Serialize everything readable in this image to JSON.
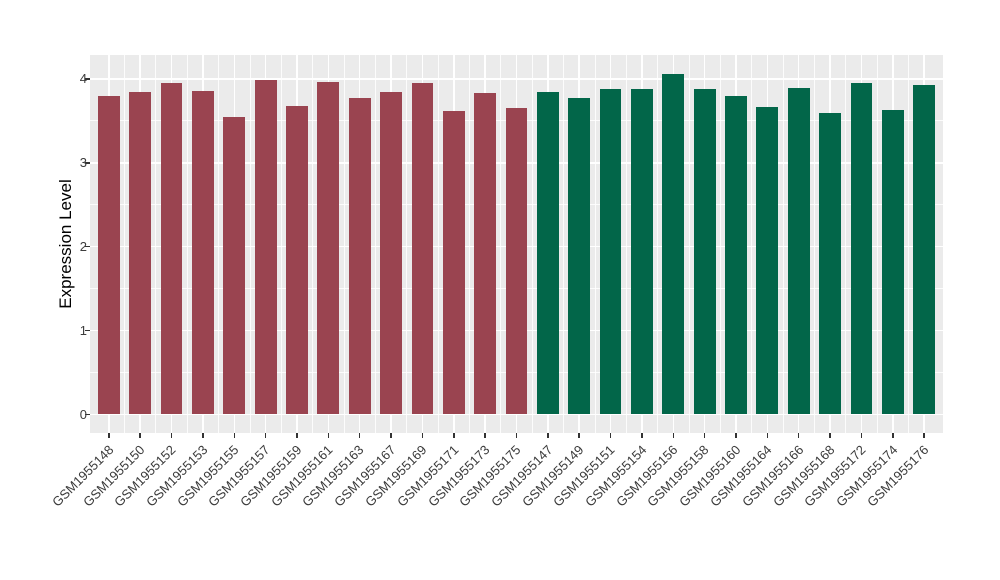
{
  "figure": {
    "background": "#FFFFFF",
    "panel_background": "#EBEBEB",
    "grid_color": "#FFFFFF",
    "tick_color": "#333333",
    "axis_text_color": "#3d3d3d",
    "axis_title_color": "#000000"
  },
  "chart_data": {
    "type": "bar",
    "title": "",
    "xlabel": "",
    "ylabel": "Expression Level",
    "legend_position": "none",
    "grid": true,
    "ylim": [
      -0.2,
      4.25
    ],
    "y_axis": {
      "ticks": [
        0,
        1,
        2,
        3,
        4
      ],
      "minor_ticks": [
        0.5,
        1.5,
        2.5,
        3.5
      ]
    },
    "categories": [
      "GSM1955148",
      "GSM1955150",
      "GSM1955152",
      "GSM1955153",
      "GSM1955155",
      "GSM1955157",
      "GSM1955159",
      "GSM1955161",
      "GSM1955163",
      "GSM1955167",
      "GSM1955169",
      "GSM1955171",
      "GSM1955173",
      "GSM1955175",
      "GSM1955147",
      "GSM1955149",
      "GSM1955151",
      "GSM1955154",
      "GSM1955156",
      "GSM1955158",
      "GSM1955160",
      "GSM1955164",
      "GSM1955166",
      "GSM1955168",
      "GSM1955172",
      "GSM1955174",
      "GSM1955176"
    ],
    "values": [
      3.8,
      3.84,
      3.95,
      3.85,
      3.55,
      3.99,
      3.68,
      3.96,
      3.77,
      3.84,
      3.95,
      3.62,
      3.83,
      3.65,
      3.84,
      3.77,
      3.88,
      3.88,
      4.06,
      3.88,
      3.8,
      3.66,
      3.89,
      3.59,
      3.95,
      3.63,
      3.93
    ],
    "bar_colors": [
      "#9A4450",
      "#9A4450",
      "#9A4450",
      "#9A4450",
      "#9A4450",
      "#9A4450",
      "#9A4450",
      "#9A4450",
      "#9A4450",
      "#9A4450",
      "#9A4450",
      "#9A4450",
      "#9A4450",
      "#9A4450",
      "#026649",
      "#026649",
      "#026649",
      "#026649",
      "#026649",
      "#026649",
      "#026649",
      "#026649",
      "#026649",
      "#026649",
      "#026649",
      "#026649",
      "#026649"
    ],
    "color_groups": [
      {
        "color": "#9A4450",
        "count": 14
      },
      {
        "color": "#026649",
        "count": 13
      }
    ]
  }
}
